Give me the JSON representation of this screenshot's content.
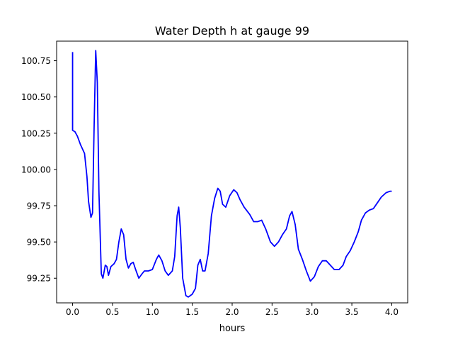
{
  "chart_data": {
    "type": "line",
    "title": "Water Depth h at gauge 99",
    "xlabel": "hours",
    "ylabel": "",
    "xlim": [
      -0.2,
      4.2
    ],
    "ylim": [
      99.08,
      100.885
    ],
    "x_ticks": [
      0.0,
      0.5,
      1.0,
      1.5,
      2.0,
      2.5,
      3.0,
      3.5,
      4.0
    ],
    "x_tick_labels": [
      "0.0",
      "0.5",
      "1.0",
      "1.5",
      "2.0",
      "2.5",
      "3.0",
      "3.5",
      "4.0"
    ],
    "y_ticks": [
      99.25,
      99.5,
      99.75,
      100.0,
      100.25,
      100.5,
      100.75
    ],
    "y_tick_labels": [
      "99.25",
      "99.50",
      "99.75",
      "100.00",
      "100.25",
      "100.50",
      "100.75"
    ],
    "grid": false,
    "legend": "none",
    "series": [
      {
        "color": "#0000ff",
        "points": [
          [
            0.0,
            100.81
          ],
          [
            0.0,
            100.27
          ],
          [
            0.03,
            100.26
          ],
          [
            0.06,
            100.23
          ],
          [
            0.1,
            100.17
          ],
          [
            0.15,
            100.11
          ],
          [
            0.18,
            99.95
          ],
          [
            0.2,
            99.78
          ],
          [
            0.23,
            99.67
          ],
          [
            0.25,
            99.7
          ],
          [
            0.27,
            100.3
          ],
          [
            0.29,
            100.82
          ],
          [
            0.31,
            100.6
          ],
          [
            0.33,
            99.85
          ],
          [
            0.36,
            99.28
          ],
          [
            0.38,
            99.25
          ],
          [
            0.41,
            99.34
          ],
          [
            0.43,
            99.33
          ],
          [
            0.45,
            99.27
          ],
          [
            0.48,
            99.33
          ],
          [
            0.52,
            99.35
          ],
          [
            0.55,
            99.38
          ],
          [
            0.58,
            99.5
          ],
          [
            0.61,
            99.59
          ],
          [
            0.64,
            99.55
          ],
          [
            0.67,
            99.38
          ],
          [
            0.7,
            99.32
          ],
          [
            0.73,
            99.35
          ],
          [
            0.76,
            99.36
          ],
          [
            0.79,
            99.31
          ],
          [
            0.83,
            99.25
          ],
          [
            0.87,
            99.28
          ],
          [
            0.9,
            99.3
          ],
          [
            0.95,
            99.3
          ],
          [
            1.0,
            99.31
          ],
          [
            1.05,
            99.38
          ],
          [
            1.08,
            99.41
          ],
          [
            1.12,
            99.37
          ],
          [
            1.16,
            99.3
          ],
          [
            1.2,
            99.27
          ],
          [
            1.25,
            99.3
          ],
          [
            1.28,
            99.4
          ],
          [
            1.31,
            99.68
          ],
          [
            1.33,
            99.74
          ],
          [
            1.35,
            99.6
          ],
          [
            1.38,
            99.25
          ],
          [
            1.42,
            99.13
          ],
          [
            1.45,
            99.12
          ],
          [
            1.5,
            99.14
          ],
          [
            1.54,
            99.18
          ],
          [
            1.57,
            99.34
          ],
          [
            1.6,
            99.38
          ],
          [
            1.63,
            99.3
          ],
          [
            1.66,
            99.3
          ],
          [
            1.7,
            99.42
          ],
          [
            1.74,
            99.68
          ],
          [
            1.78,
            99.8
          ],
          [
            1.82,
            99.87
          ],
          [
            1.85,
            99.85
          ],
          [
            1.88,
            99.76
          ],
          [
            1.92,
            99.74
          ],
          [
            1.97,
            99.82
          ],
          [
            2.02,
            99.86
          ],
          [
            2.06,
            99.84
          ],
          [
            2.1,
            99.79
          ],
          [
            2.15,
            99.74
          ],
          [
            2.22,
            99.69
          ],
          [
            2.27,
            99.64
          ],
          [
            2.32,
            99.64
          ],
          [
            2.37,
            99.65
          ],
          [
            2.42,
            99.59
          ],
          [
            2.48,
            99.5
          ],
          [
            2.53,
            99.47
          ],
          [
            2.58,
            99.5
          ],
          [
            2.63,
            99.55
          ],
          [
            2.68,
            99.59
          ],
          [
            2.72,
            99.68
          ],
          [
            2.75,
            99.71
          ],
          [
            2.79,
            99.62
          ],
          [
            2.83,
            99.45
          ],
          [
            2.88,
            99.38
          ],
          [
            2.93,
            99.3
          ],
          [
            2.98,
            99.23
          ],
          [
            3.03,
            99.26
          ],
          [
            3.08,
            99.33
          ],
          [
            3.13,
            99.37
          ],
          [
            3.18,
            99.37
          ],
          [
            3.23,
            99.34
          ],
          [
            3.28,
            99.31
          ],
          [
            3.34,
            99.31
          ],
          [
            3.39,
            99.34
          ],
          [
            3.43,
            99.4
          ],
          [
            3.48,
            99.44
          ],
          [
            3.53,
            99.5
          ],
          [
            3.58,
            99.57
          ],
          [
            3.62,
            99.65
          ],
          [
            3.67,
            99.7
          ],
          [
            3.72,
            99.72
          ],
          [
            3.77,
            99.73
          ],
          [
            3.82,
            99.77
          ],
          [
            3.87,
            99.81
          ],
          [
            3.93,
            99.84
          ],
          [
            3.98,
            99.85
          ],
          [
            4.0,
            99.85
          ]
        ]
      }
    ]
  }
}
